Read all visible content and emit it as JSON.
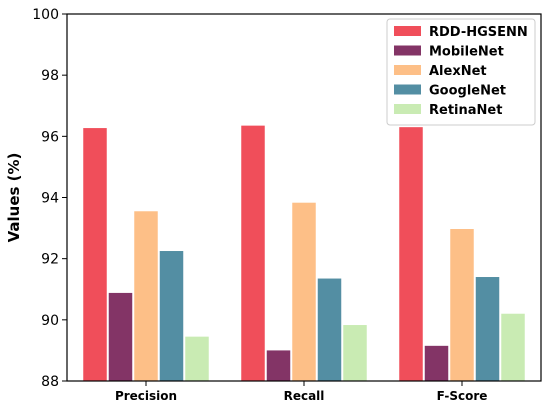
{
  "chart_data": {
    "type": "bar",
    "title": "",
    "xlabel": "",
    "ylabel": "Values (%)",
    "ylim": [
      88,
      100
    ],
    "yticks": [
      88,
      90,
      92,
      94,
      96,
      98,
      100
    ],
    "grid": false,
    "legend_position": "top-right",
    "categories": [
      "Precision",
      "Recall",
      "F-Score"
    ],
    "series": [
      {
        "name": "RDD-HGSENN",
        "color": "#f04e5a",
        "values": [
          96.27,
          96.35,
          96.3
        ]
      },
      {
        "name": "MobileNet",
        "color": "#833466",
        "values": [
          90.88,
          89.0,
          89.15
        ]
      },
      {
        "name": "AlexNet",
        "color": "#fdbf87",
        "values": [
          93.55,
          93.83,
          92.97
        ]
      },
      {
        "name": "GoogleNet",
        "color": "#538ea3",
        "values": [
          92.25,
          91.35,
          91.4
        ]
      },
      {
        "name": "RetinaNet",
        "color": "#c9ebb3",
        "values": [
          89.45,
          89.83,
          90.2
        ]
      }
    ]
  }
}
